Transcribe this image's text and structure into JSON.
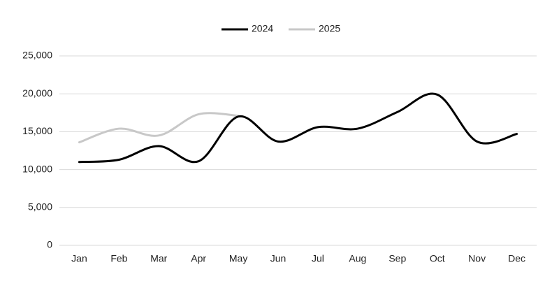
{
  "chart_data": {
    "type": "line",
    "categories": [
      "Jan",
      "Feb",
      "Mar",
      "Apr",
      "May",
      "Jun",
      "Jul",
      "Aug",
      "Sep",
      "Oct",
      "Nov",
      "Dec"
    ],
    "series": [
      {
        "name": "2024",
        "color": "#000000",
        "values": [
          11000,
          11300,
          13100,
          11100,
          17000,
          13700,
          15600,
          15400,
          17600,
          19900,
          13700,
          14700
        ]
      },
      {
        "name": "2025",
        "color": "#c8c8c8",
        "values": [
          13600,
          15400,
          14500,
          17300,
          17100,
          null,
          null,
          null,
          null,
          null,
          null,
          null
        ]
      }
    ],
    "ylim": [
      0,
      25000
    ],
    "yticks": [
      0,
      {
        "value": 5000,
        "label": "5,000"
      },
      {
        "value": 10000,
        "label": "10,000"
      },
      {
        "value": 15000,
        "label": "15,000"
      },
      {
        "value": 20000,
        "label": "20,000"
      },
      {
        "value": 25000,
        "label": "25,000"
      }
    ],
    "grid": true,
    "legend": "top"
  }
}
